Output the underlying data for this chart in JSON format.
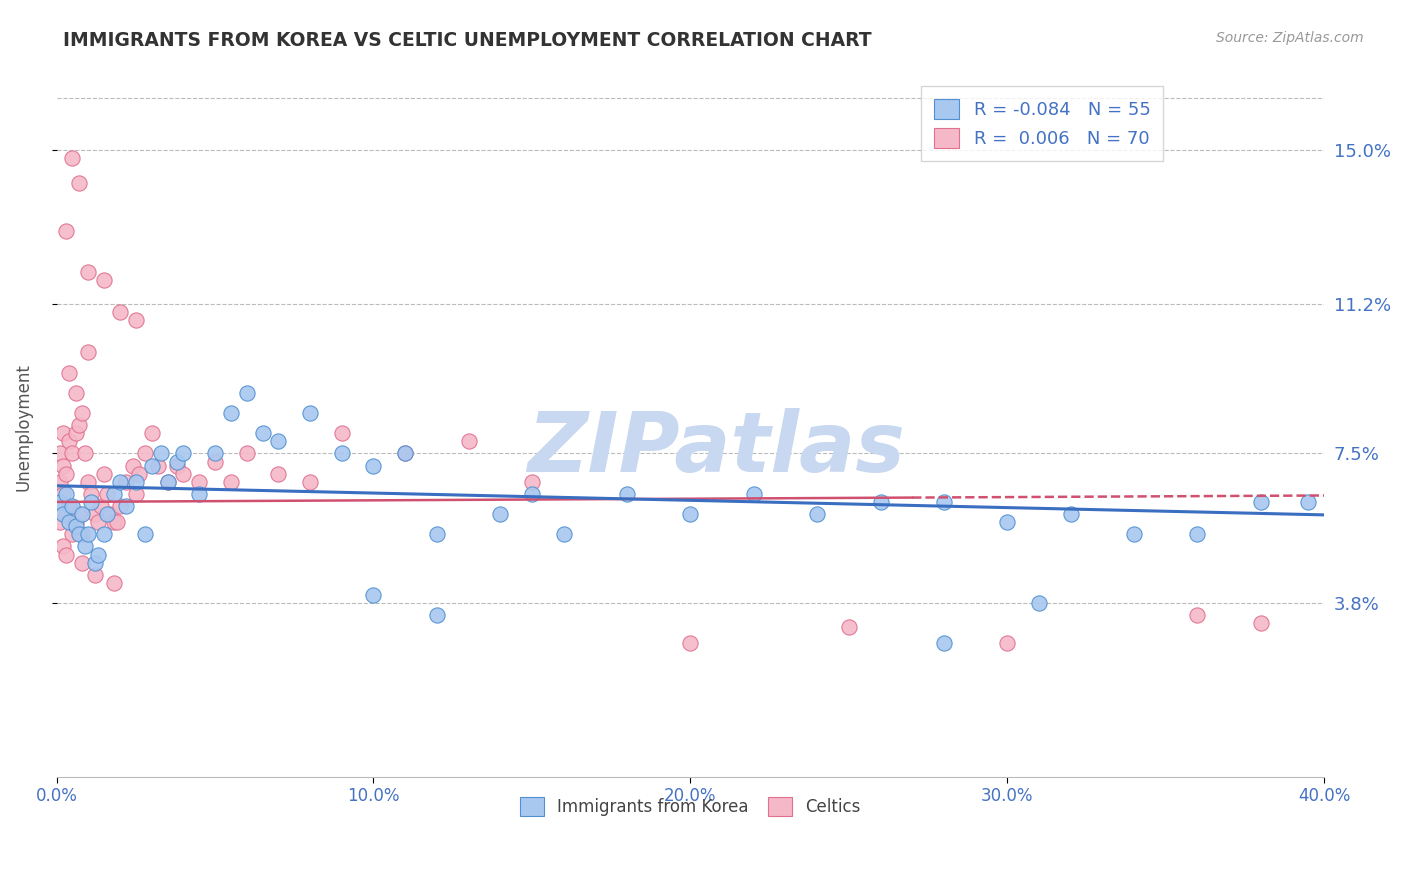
{
  "title": "IMMIGRANTS FROM KOREA VS CELTIC UNEMPLOYMENT CORRELATION CHART",
  "source": "Source: ZipAtlas.com",
  "ylabel": "Unemployment",
  "x_min": 0.0,
  "x_max": 0.4,
  "y_min": -0.005,
  "y_max": 0.168,
  "yticks": [
    0.038,
    0.075,
    0.112,
    0.15
  ],
  "ytick_labels": [
    "3.8%",
    "7.5%",
    "11.2%",
    "15.0%"
  ],
  "xticks": [
    0.0,
    0.1,
    0.2,
    0.3,
    0.4
  ],
  "xtick_labels": [
    "0.0%",
    "10.0%",
    "20.0%",
    "30.0%",
    "40.0%"
  ],
  "blue_color": "#A8C8F0",
  "pink_color": "#F5B8C8",
  "blue_edge_color": "#5090D0",
  "pink_edge_color": "#E07090",
  "blue_line_color": "#3A6EC0",
  "pink_line_color": "#D05070",
  "title_color": "#333333",
  "axis_label_color": "#4472C4",
  "watermark_color": "#C8D8F0",
  "legend_r1": "R = -0.084",
  "legend_n1": "N = 55",
  "legend_r2": "R =  0.006",
  "legend_n2": "N = 70",
  "blue_slope": -0.018,
  "blue_intercept": 0.067,
  "pink_slope": 0.004,
  "pink_intercept": 0.063,
  "blue_points_x": [
    0.001,
    0.002,
    0.003,
    0.004,
    0.005,
    0.006,
    0.007,
    0.008,
    0.009,
    0.01,
    0.011,
    0.012,
    0.013,
    0.015,
    0.016,
    0.018,
    0.02,
    0.022,
    0.025,
    0.028,
    0.03,
    0.033,
    0.035,
    0.038,
    0.04,
    0.045,
    0.05,
    0.055,
    0.06,
    0.065,
    0.07,
    0.08,
    0.09,
    0.1,
    0.11,
    0.12,
    0.14,
    0.15,
    0.16,
    0.18,
    0.2,
    0.22,
    0.24,
    0.26,
    0.28,
    0.3,
    0.32,
    0.34,
    0.36,
    0.38,
    0.395,
    0.28,
    0.31,
    0.1,
    0.12
  ],
  "blue_points_y": [
    0.063,
    0.06,
    0.065,
    0.058,
    0.062,
    0.057,
    0.055,
    0.06,
    0.052,
    0.055,
    0.063,
    0.048,
    0.05,
    0.055,
    0.06,
    0.065,
    0.068,
    0.062,
    0.068,
    0.055,
    0.072,
    0.075,
    0.068,
    0.073,
    0.075,
    0.065,
    0.075,
    0.085,
    0.09,
    0.08,
    0.078,
    0.085,
    0.075,
    0.072,
    0.075,
    0.055,
    0.06,
    0.065,
    0.055,
    0.065,
    0.06,
    0.065,
    0.06,
    0.063,
    0.063,
    0.058,
    0.06,
    0.055,
    0.055,
    0.063,
    0.063,
    0.028,
    0.038,
    0.04,
    0.035
  ],
  "pink_points_x": [
    0.001,
    0.001,
    0.001,
    0.002,
    0.002,
    0.002,
    0.003,
    0.003,
    0.004,
    0.004,
    0.005,
    0.005,
    0.006,
    0.006,
    0.007,
    0.007,
    0.008,
    0.008,
    0.009,
    0.01,
    0.011,
    0.012,
    0.013,
    0.014,
    0.015,
    0.016,
    0.017,
    0.018,
    0.019,
    0.02,
    0.022,
    0.024,
    0.025,
    0.026,
    0.028,
    0.03,
    0.032,
    0.035,
    0.038,
    0.04,
    0.045,
    0.05,
    0.055,
    0.06,
    0.07,
    0.08,
    0.09,
    0.11,
    0.13,
    0.15,
    0.003,
    0.005,
    0.007,
    0.01,
    0.015,
    0.02,
    0.025,
    0.004,
    0.006,
    0.01,
    0.002,
    0.003,
    0.2,
    0.25,
    0.3,
    0.36,
    0.38,
    0.008,
    0.012,
    0.018
  ],
  "pink_points_y": [
    0.068,
    0.075,
    0.058,
    0.072,
    0.08,
    0.065,
    0.07,
    0.06,
    0.078,
    0.062,
    0.075,
    0.055,
    0.08,
    0.058,
    0.082,
    0.06,
    0.085,
    0.055,
    0.075,
    0.068,
    0.065,
    0.06,
    0.058,
    0.062,
    0.07,
    0.065,
    0.06,
    0.058,
    0.058,
    0.062,
    0.068,
    0.072,
    0.065,
    0.07,
    0.075,
    0.08,
    0.072,
    0.068,
    0.072,
    0.07,
    0.068,
    0.073,
    0.068,
    0.075,
    0.07,
    0.068,
    0.08,
    0.075,
    0.078,
    0.068,
    0.13,
    0.148,
    0.142,
    0.12,
    0.118,
    0.11,
    0.108,
    0.095,
    0.09,
    0.1,
    0.052,
    0.05,
    0.028,
    0.032,
    0.028,
    0.035,
    0.033,
    0.048,
    0.045,
    0.043
  ]
}
